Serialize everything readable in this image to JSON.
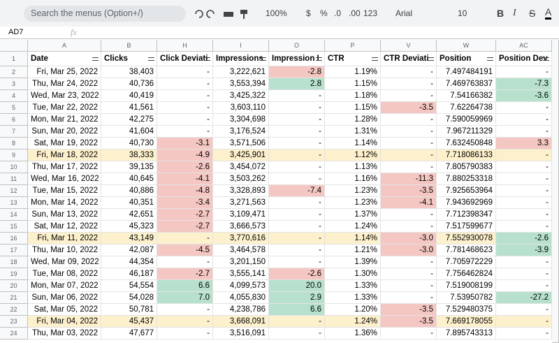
{
  "toolbar": {
    "search": "Search the menus (Option+/)",
    "zoom": "100%",
    "currency": "$",
    "percent": "%",
    "decrease_decimals": ".0",
    "increase_decimals": ".00",
    "format": "123",
    "font": "Arial",
    "font_size": "10",
    "bold": "B",
    "italic": "I",
    "strikethrough": "S",
    "text_color": "A"
  },
  "formula_bar": {
    "name_box": "AD7",
    "fx": "fx"
  },
  "table": {
    "columns": [
      "A",
      "B",
      "H",
      "I",
      "O",
      "P",
      "V",
      "W",
      "AC"
    ],
    "header_row": "1",
    "header": [
      "Date",
      "Clicks",
      "Click Deviati",
      "Impressions",
      "Impression I",
      "CTR",
      "CTR Deviati",
      "Position",
      "Position Dev"
    ],
    "rows": [
      {
        "number": "2",
        "cells": [
          "Fri, Mar 25, 2022",
          "38,403",
          "-",
          "3,222,621",
          "-2.8",
          "1.19%",
          "-",
          "7.497484191",
          "-"
        ],
        "fills": {
          "4": "#f4c7c3"
        }
      },
      {
        "number": "3",
        "cells": [
          "Thu, Mar 24, 2022",
          "40,736",
          "-",
          "3,553,394",
          "2.8",
          "1.15%",
          "-",
          "7.469763837",
          "-7.3"
        ],
        "fills": {
          "4": "#b7e1cd",
          "8": "#b7e1cd"
        }
      },
      {
        "number": "4",
        "cells": [
          "Wed, Mar 23, 2022",
          "40,419",
          "-",
          "3,425,322",
          "-",
          "1.18%",
          "-",
          "7.54166382",
          "-3.6"
        ],
        "fills": {
          "8": "#b7e1cd"
        }
      },
      {
        "number": "5",
        "cells": [
          "Tue, Mar 22, 2022",
          "41,561",
          "-",
          "3,603,110",
          "-",
          "1.15%",
          "-3.5",
          "7.62264738",
          "-"
        ],
        "fills": {
          "6": "#f4c7c3"
        }
      },
      {
        "number": "6",
        "cells": [
          "Mon, Mar 21, 2022",
          "42,275",
          "-",
          "3,304,698",
          "-",
          "1.28%",
          "-",
          "7.590059969",
          "-"
        ]
      },
      {
        "number": "7",
        "cells": [
          "Sun, Mar 20, 2022",
          "41,604",
          "-",
          "3,176,524",
          "-",
          "1.31%",
          "-",
          "7.967211329",
          "-"
        ]
      },
      {
        "number": "8",
        "cells": [
          "Sat, Mar 19, 2022",
          "40,730",
          "-3.1",
          "3,571,506",
          "-",
          "1.14%",
          "-",
          "7.632450848",
          "3.3"
        ],
        "fills": {
          "2": "#f4c7c3",
          "8": "#f4c7c3"
        }
      },
      {
        "number": "9",
        "cells": [
          "Fri, Mar 18, 2022",
          "38,333",
          "-4.9",
          "3,425,901",
          "-",
          "1.12%",
          "-",
          "7.718086133",
          "-"
        ],
        "fill": "#fdf0cc",
        "fills": {
          "2": "#f4c7c3"
        }
      },
      {
        "number": "10",
        "cells": [
          "Thu, Mar 17, 2022",
          "39,135",
          "-2.6",
          "3,454,072",
          "-",
          "1.13%",
          "-",
          "7.805790383",
          "-"
        ],
        "fills": {
          "2": "#f4c7c3"
        }
      },
      {
        "number": "11",
        "cells": [
          "Wed, Mar 16, 2022",
          "40,645",
          "-4.1",
          "3,503,262",
          "-",
          "1.16%",
          "-11.3",
          "7.880253318",
          "-"
        ],
        "fills": {
          "2": "#f4c7c3",
          "6": "#f4c7c3"
        }
      },
      {
        "number": "12",
        "cells": [
          "Tue, Mar 15, 2022",
          "40,886",
          "-4.8",
          "3,328,893",
          "-7.4",
          "1.23%",
          "-3.5",
          "7.925653964",
          "-"
        ],
        "fills": {
          "2": "#f4c7c3",
          "4": "#f4c7c3",
          "6": "#f4c7c3"
        }
      },
      {
        "number": "13",
        "cells": [
          "Mon, Mar 14, 2022",
          "40,351",
          "-3.4",
          "3,271,563",
          "-",
          "1.23%",
          "-4.1",
          "7.943692969",
          "-"
        ],
        "fills": {
          "2": "#f4c7c3",
          "6": "#f4c7c3"
        }
      },
      {
        "number": "14",
        "cells": [
          "Sun, Mar 13, 2022",
          "42,651",
          "-2.7",
          "3,109,471",
          "-",
          "1.37%",
          "-",
          "7.712398347",
          "-"
        ],
        "fills": {
          "2": "#f4c7c3"
        }
      },
      {
        "number": "15",
        "cells": [
          "Sat, Mar 12, 2022",
          "45,323",
          "-2.7",
          "3,666,573",
          "-",
          "1.24%",
          "-",
          "7.517599677",
          "-"
        ],
        "fills": {
          "2": "#f4c7c3"
        }
      },
      {
        "number": "16",
        "cells": [
          "Fri, Mar 11, 2022",
          "43,149",
          "-",
          "3,770,616",
          "-",
          "1.14%",
          "-3.0",
          "7.552930078",
          "-2.6"
        ],
        "fill": "#fdf0cc",
        "fills": {
          "6": "#f4c7c3",
          "8": "#b7e1cd"
        }
      },
      {
        "number": "17",
        "cells": [
          "Thu, Mar 10, 2022",
          "42,087",
          "-4.5",
          "3,464,578",
          "-",
          "1.21%",
          "-3.0",
          "7.781468623",
          "-3.9"
        ],
        "fills": {
          "2": "#f4c7c3",
          "6": "#f4c7c3",
          "8": "#b7e1cd"
        }
      },
      {
        "number": "18",
        "cells": [
          "Wed, Mar 09, 2022",
          "44,354",
          "-",
          "3,201,150",
          "-",
          "1.39%",
          "-",
          "7.705972229",
          "-"
        ]
      },
      {
        "number": "19",
        "cells": [
          "Tue, Mar 08, 2022",
          "46,187",
          "-2.7",
          "3,555,141",
          "-2.6",
          "1.30%",
          "-",
          "7.756462824",
          "-"
        ],
        "fills": {
          "2": "#f4c7c3",
          "4": "#f4c7c3"
        }
      },
      {
        "number": "20",
        "cells": [
          "Mon, Mar 07, 2022",
          "54,554",
          "6.6",
          "4,099,573",
          "20.0",
          "1.33%",
          "-",
          "7.519008199",
          "-"
        ],
        "fills": {
          "2": "#b7e1cd",
          "4": "#b7e1cd"
        }
      },
      {
        "number": "21",
        "cells": [
          "Sun, Mar 06, 2022",
          "54,028",
          "7.0",
          "4,055,830",
          "2.9",
          "1.33%",
          "-",
          "7.53950782",
          "-27.2"
        ],
        "fills": {
          "2": "#b7e1cd",
          "4": "#b7e1cd",
          "8": "#b7e1cd"
        }
      },
      {
        "number": "22",
        "cells": [
          "Sat, Mar 05, 2022",
          "50,781",
          "-",
          "4,238,786",
          "6.6",
          "1.20%",
          "-3.5",
          "7.529480375",
          "-"
        ],
        "fills": {
          "4": "#b7e1cd",
          "6": "#f4c7c3"
        }
      },
      {
        "number": "23",
        "cells": [
          "Fri, Mar 04, 2022",
          "45,437",
          "-",
          "3,668,091",
          "-",
          "1.24%",
          "-3.5",
          "7.669178055",
          "-"
        ],
        "fill": "#fdf0cc",
        "fills": {
          "6": "#f4c7c3"
        }
      },
      {
        "number": "24",
        "cells": [
          "Thu, Mar 03, 2022",
          "47,677",
          "-",
          "3,516,091",
          "-",
          "1.36%",
          "-",
          "7.895743313",
          "-"
        ]
      }
    ]
  }
}
